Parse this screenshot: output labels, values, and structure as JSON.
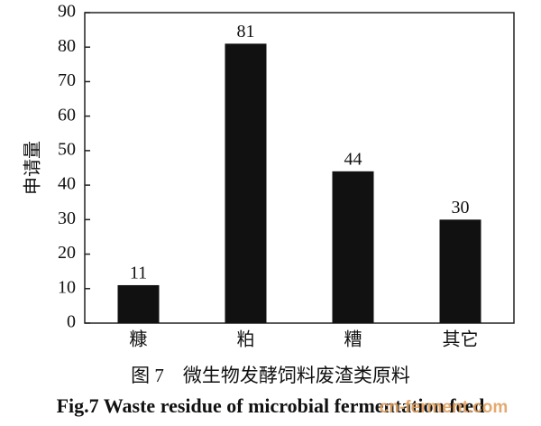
{
  "chart_data": {
    "type": "bar",
    "y_label": "申请量",
    "categories": [
      "糠",
      "粕",
      "糟",
      "其它"
    ],
    "values": [
      11,
      81,
      44,
      30
    ],
    "color": "#111111",
    "ylim": [
      0,
      90
    ],
    "yticks": [
      0,
      10,
      20,
      30,
      40,
      50,
      60,
      70,
      80,
      90
    ],
    "grid": false,
    "caption_cn": "图 7　微生物发酵饲料废渣类原料",
    "caption_en": "Fig.7 Waste residue of microbial fermentation feed",
    "watermark": "cn-ferment.com"
  }
}
